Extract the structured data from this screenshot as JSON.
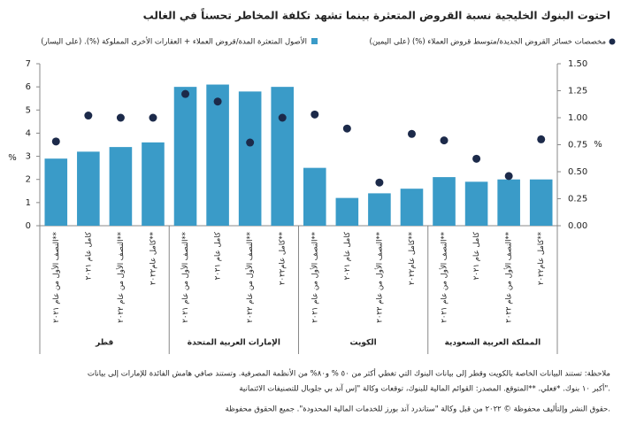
{
  "chart_data": {
    "type": "bar",
    "title": "احتوت البنوك الخليجية  نسبة القروض المتعثرة بينما تشهد تكلفة المخاطر تحسناً في الغالب",
    "categories": [
      "النصف الأول من عام ٢٠٢١**",
      "كامل عام ٢٠٢١",
      "النصف الأول من عام ٢٠٢٢**",
      "كامل عام٢٠٢٢**",
      "النصف الأول من عام ٢٠٢١**",
      "كامل عام ٢٠٢١",
      "النصف الأول من عام ٢٠٢٢**",
      "كامل عام٢٠٢٢**",
      "النصف الأول من عام ٢٠٢١**",
      "كامل عام ٢٠٢١",
      "النصف الأول من عام ٢٠٢٢**",
      "كامل عام٢٠٢٢**",
      "النصف الأول من عام ٢٠٢١**",
      "كامل عام ٢٠٢١",
      "النصف الأول من عام ٢٠٢٢**",
      "كامل عام٢٠٢٢**"
    ],
    "groups": [
      "قطر",
      "الإمارات العربية المتحدة",
      "الكويت",
      "المملكة العربية السعودية"
    ],
    "series": [
      {
        "name": "الأصول المتعثرة المدة/قروض العملاء + العقارات الأخرى المملوكة (%). (على اليسار)",
        "type": "bar",
        "color": "#3a9bc8",
        "values": [
          2.9,
          3.2,
          3.4,
          3.6,
          6.0,
          6.1,
          5.8,
          6.0,
          2.5,
          1.2,
          1.4,
          1.6,
          2.1,
          1.9,
          2.0,
          2.0
        ]
      },
      {
        "name": "مخصصات خسائر القروض الجديدة/متوسط قروض العملاء (%) (على اليمين)",
        "type": "scatter",
        "axis": "y2",
        "color": "#1c2a4a",
        "values": [
          0.78,
          1.02,
          1.0,
          1.0,
          1.22,
          1.15,
          0.77,
          1.0,
          1.03,
          0.9,
          0.4,
          0.85,
          0.79,
          0.62,
          0.46,
          0.8
        ]
      }
    ],
    "ylabel": "%",
    "y2label": "%",
    "ylim": [
      0,
      7
    ],
    "yticks": [
      0,
      1,
      2,
      3,
      4,
      5,
      6,
      7
    ],
    "y2lim": [
      0,
      1.5
    ],
    "y2ticks": [
      {
        "value": 0,
        "label": "0.00"
      },
      {
        "value": 0.25,
        "label": "0.25"
      },
      {
        "value": 0.5,
        "label": "0.50"
      },
      {
        "value": 0.75,
        "label": "0.75"
      },
      {
        "value": 1,
        "label": "1.00"
      },
      {
        "value": 1.25,
        "label": "1.25"
      },
      {
        "value": 1.5,
        "label": "1.50"
      }
    ],
    "notes": [
      "ملاحظة: تستند البيانات الخاصة بالكويت وقطر إلى بيانات البنوك  التي تغطي أكثر من ٥٠ % و٨٠% من الأنظمة المصرفية. وتستند صافي هامش الفائدة للإمارات إلى بيانات",
      "أكبر ١٠ بنوك. *فعلي. **المتوقع. المصدر: القوائم المالية للبنوك، توقعات وكالة \"إس آند بي جلوبال للتصنيفات الائتمانية\".",
      "حقوق النشر وإلتأليف محفوظة © ٢٠٢٢ من قبل وكالة \"ستاندرد آند بورز للخدمات المالية المحدودة\". جميع الحقوق محفوظة."
    ]
  }
}
